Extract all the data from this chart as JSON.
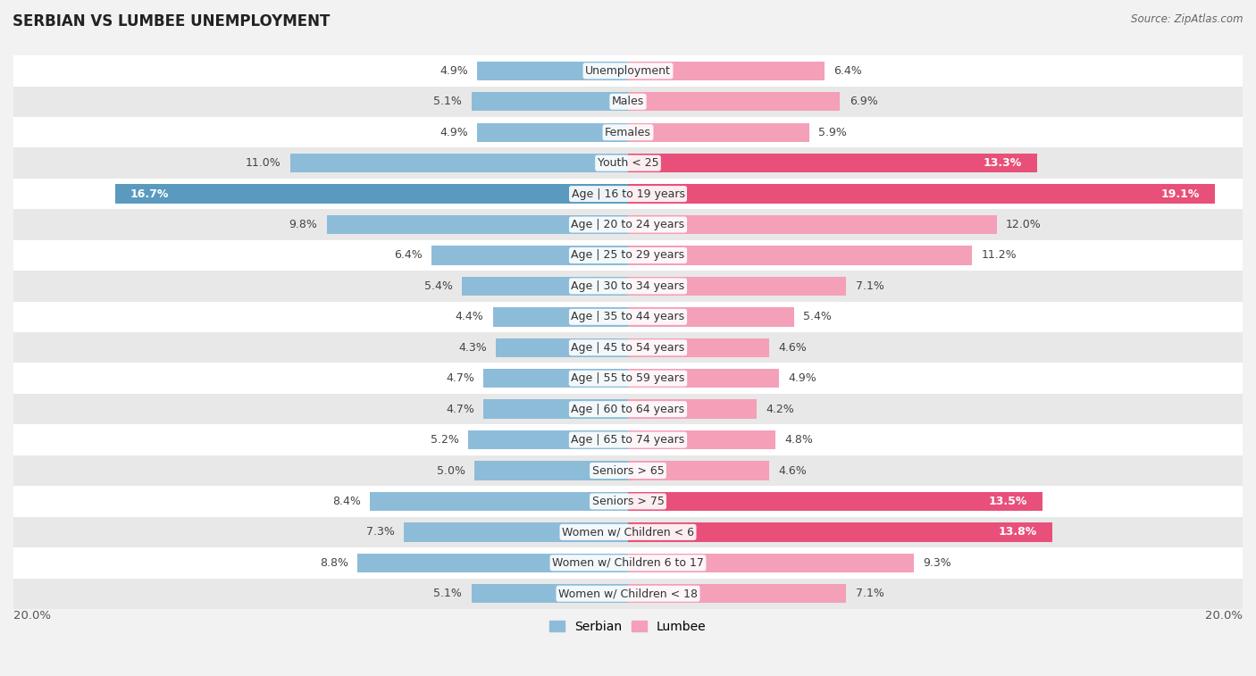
{
  "title": "SERBIAN VS LUMBEE UNEMPLOYMENT",
  "source": "Source: ZipAtlas.com",
  "categories": [
    "Unemployment",
    "Males",
    "Females",
    "Youth < 25",
    "Age | 16 to 19 years",
    "Age | 20 to 24 years",
    "Age | 25 to 29 years",
    "Age | 30 to 34 years",
    "Age | 35 to 44 years",
    "Age | 45 to 54 years",
    "Age | 55 to 59 years",
    "Age | 60 to 64 years",
    "Age | 65 to 74 years",
    "Seniors > 65",
    "Seniors > 75",
    "Women w/ Children < 6",
    "Women w/ Children 6 to 17",
    "Women w/ Children < 18"
  ],
  "serbian": [
    4.9,
    5.1,
    4.9,
    11.0,
    16.7,
    9.8,
    6.4,
    5.4,
    4.4,
    4.3,
    4.7,
    4.7,
    5.2,
    5.0,
    8.4,
    7.3,
    8.8,
    5.1
  ],
  "lumbee": [
    6.4,
    6.9,
    5.9,
    13.3,
    19.1,
    12.0,
    11.2,
    7.1,
    5.4,
    4.6,
    4.9,
    4.2,
    4.8,
    4.6,
    13.5,
    13.8,
    9.3,
    7.1
  ],
  "serbian_color": "#8dbcd9",
  "lumbee_color_normal": "#f4a0b8",
  "lumbee_color_high": "#e8507a",
  "lumbee_high_threshold": 13.0,
  "serbian_high_threshold": 13.0,
  "serbian_color_high": "#5a9abf",
  "background_color": "#f2f2f2",
  "row_color_even": "#ffffff",
  "row_color_odd": "#e8e8e8",
  "axis_limit": 20.0,
  "label_fontsize": 9.0,
  "title_fontsize": 12,
  "source_fontsize": 8.5,
  "value_fontsize": 9.0
}
